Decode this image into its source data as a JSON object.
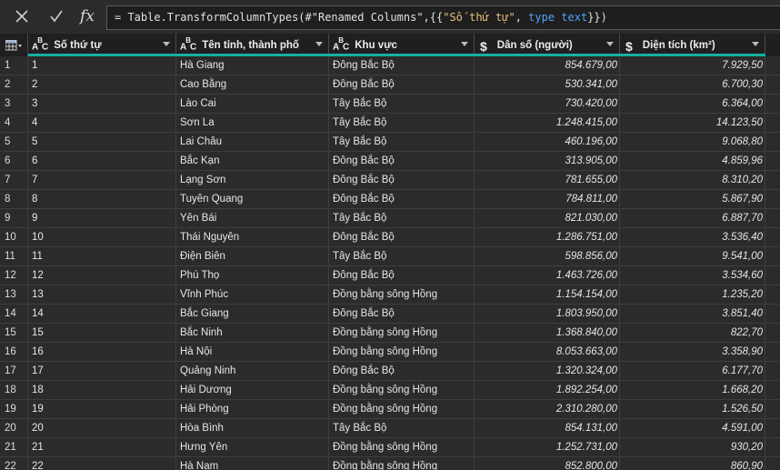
{
  "formula_bar": {
    "cancel_icon": "x-icon",
    "commit_icon": "check-icon",
    "fx_label": "fx",
    "formula_prefix": "= Table.TransformColumnTypes(#\"Renamed Columns\",{{",
    "formula_string": "\"Số thứ tự\"",
    "formula_sep": ", ",
    "formula_keyword": "type text",
    "formula_suffix": "}})"
  },
  "colors": {
    "accent": "#12b0a0",
    "keyword": "#4fa3ff",
    "string": "#e6c07b"
  },
  "columns": [
    {
      "label": "Số thứ tự",
      "type_icon": "ABC"
    },
    {
      "label": "Tên tỉnh, thành phố",
      "type_icon": "ABC"
    },
    {
      "label": "Khu vực",
      "type_icon": "ABC"
    },
    {
      "label": "Dân số (người)",
      "type_icon": "$"
    },
    {
      "label": "Diện tích (km²)",
      "type_icon": "$"
    }
  ],
  "rows": [
    [
      "1",
      "1",
      "Hà Giang",
      "Đông Bắc Bộ",
      "854.679,00",
      "7.929,50"
    ],
    [
      "2",
      "2",
      "Cao Bằng",
      "Đông Bắc Bộ",
      "530.341,00",
      "6.700,30"
    ],
    [
      "3",
      "3",
      "Lào Cai",
      "Tây Bắc Bộ",
      "730.420,00",
      "6.364,00"
    ],
    [
      "4",
      "4",
      "Sơn La",
      "Tây Bắc Bộ",
      "1.248.415,00",
      "14.123,50"
    ],
    [
      "5",
      "5",
      "Lai Châu",
      "Tây Bắc Bộ",
      "460.196,00",
      "9.068,80"
    ],
    [
      "6",
      "6",
      "Bắc Kạn",
      "Đông Bắc Bộ",
      "313.905,00",
      "4.859,96"
    ],
    [
      "7",
      "7",
      "Lạng Sơn",
      "Đông Bắc Bộ",
      "781.655,00",
      "8.310,20"
    ],
    [
      "8",
      "8",
      "Tuyên Quang",
      "Đông Bắc Bộ",
      "784.811,00",
      "5.867,90"
    ],
    [
      "9",
      "9",
      "Yên Bái",
      "Tây Bắc Bộ",
      "821.030,00",
      "6.887,70"
    ],
    [
      "10",
      "10",
      "Thái Nguyên",
      "Đông Bắc Bộ",
      "1.286.751,00",
      "3.536,40"
    ],
    [
      "11",
      "11",
      "Điện Biên",
      "Tây Bắc Bộ",
      "598.856,00",
      "9.541,00"
    ],
    [
      "12",
      "12",
      "Phú Thọ",
      "Đông Bắc Bộ",
      "1.463.726,00",
      "3.534,60"
    ],
    [
      "13",
      "13",
      "Vĩnh Phúc",
      "Đồng bằng sông Hồng",
      "1.154.154,00",
      "1.235,20"
    ],
    [
      "14",
      "14",
      "Bắc Giang",
      "Đông Bắc Bộ",
      "1.803.950,00",
      "3.851,40"
    ],
    [
      "15",
      "15",
      "Bắc Ninh",
      "Đồng bằng sông Hồng",
      "1.368.840,00",
      "822,70"
    ],
    [
      "16",
      "16",
      "Hà Nội",
      "Đồng bằng sông Hồng",
      "8.053.663,00",
      "3.358,90"
    ],
    [
      "17",
      "17",
      "Quảng Ninh",
      "Đông Bắc Bộ",
      "1.320.324,00",
      "6.177,70"
    ],
    [
      "18",
      "18",
      "Hải Dương",
      "Đồng bằng sông Hồng",
      "1.892.254,00",
      "1.668,20"
    ],
    [
      "19",
      "19",
      "Hải Phòng",
      "Đồng bằng sông Hồng",
      "2.310.280,00",
      "1.526,50"
    ],
    [
      "20",
      "20",
      "Hòa Bình",
      "Tây Bắc Bộ",
      "854.131,00",
      "4.591,00"
    ],
    [
      "21",
      "21",
      "Hưng Yên",
      "Đồng bằng sông Hồng",
      "1.252.731,00",
      "930,20"
    ],
    [
      "22",
      "22",
      "Hà Nam",
      "Đồng bằng sông Hồng",
      "852.800,00",
      "860,90"
    ]
  ]
}
